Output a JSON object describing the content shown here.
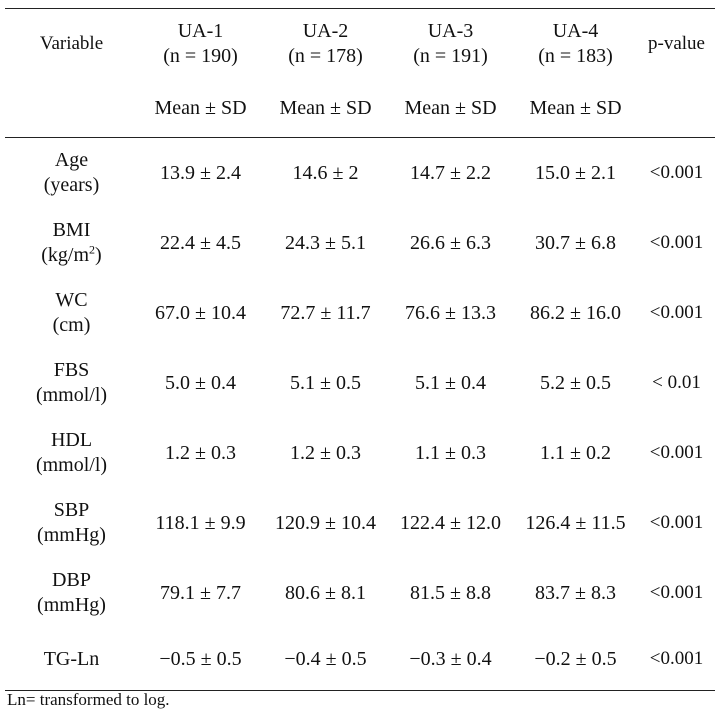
{
  "table": {
    "header": {
      "variable": "Variable",
      "groups": [
        {
          "name": "UA-1",
          "n": "(n = 190)"
        },
        {
          "name": "UA-2",
          "n": "(n = 178)"
        },
        {
          "name": "UA-3",
          "n": "(n = 191)"
        },
        {
          "name": "UA-4",
          "n": "(n = 183)"
        }
      ],
      "pvalue": "p-value",
      "subheader": "Mean ± SD"
    },
    "rows": [
      {
        "name": "Age",
        "unit": "(years)",
        "values": [
          "13.9 ± 2.4",
          "14.6 ± 2",
          "14.7 ± 2.2",
          "15.0 ± 2.1"
        ],
        "p": "<0.001"
      },
      {
        "name": "BMI",
        "unit": "(kg/m",
        "unit_sup": "2",
        "unit_end": ")",
        "values": [
          "22.4 ± 4.5",
          "24.3 ± 5.1",
          "26.6 ± 6.3",
          "30.7 ± 6.8"
        ],
        "p": "<0.001"
      },
      {
        "name": "WC",
        "unit": "(cm)",
        "values": [
          "67.0 ± 10.4",
          "72.7 ± 11.7",
          "76.6 ± 13.3",
          "86.2 ± 16.0"
        ],
        "p": "<0.001"
      },
      {
        "name": "FBS",
        "unit": "(mmol/l)",
        "values": [
          "5.0 ± 0.4",
          "5.1 ± 0.5",
          "5.1 ± 0.4",
          "5.2 ± 0.5"
        ],
        "p": "< 0.01"
      },
      {
        "name": "HDL",
        "unit": "(mmol/l)",
        "values": [
          "1.2 ± 0.3",
          "1.2 ± 0.3",
          "1.1 ± 0.3",
          "1.1 ± 0.2"
        ],
        "p": "<0.001"
      },
      {
        "name": "SBP",
        "unit": "(mmHg)",
        "values": [
          "118.1 ± 9.9",
          "120.9 ± 10.4",
          "122.4 ± 12.0",
          "126.4 ± 11.5"
        ],
        "p": "<0.001"
      },
      {
        "name": "DBP",
        "unit": "(mmHg)",
        "values": [
          "79.1 ± 7.7",
          "80.6 ± 8.1",
          "81.5 ± 8.8",
          "83.7 ± 8.3"
        ],
        "p": "<0.001"
      },
      {
        "name": "TG-Ln",
        "unit": "",
        "values": [
          "−0.5 ± 0.5",
          "−0.4 ± 0.5",
          "−0.3 ± 0.4",
          "−0.2 ± 0.5"
        ],
        "p": "<0.001"
      }
    ],
    "footnote": "Ln= transformed to log."
  }
}
